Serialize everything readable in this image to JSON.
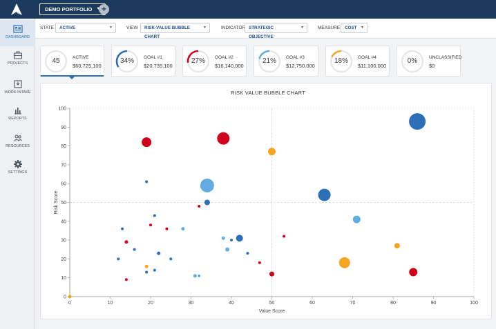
{
  "topbar": {
    "portfolio_label": "DEMO PORTFOLIO",
    "add_label": "+"
  },
  "sidebar": {
    "items": [
      {
        "label": "DASHBOARD",
        "icon": "dashboard-icon",
        "active": true
      },
      {
        "label": "PROJECTS",
        "icon": "briefcase-icon",
        "active": false
      },
      {
        "label": "WORK INTAKE",
        "icon": "inbox-icon",
        "active": false
      },
      {
        "label": "REPORTS",
        "icon": "bar-chart-icon",
        "active": false
      },
      {
        "label": "RESOURCES",
        "icon": "people-icon",
        "active": false
      },
      {
        "label": "SETTINGS",
        "icon": "gear-icon",
        "active": false
      }
    ]
  },
  "filters": {
    "state": {
      "label": "STATE",
      "value": "ACTIVE"
    },
    "view": {
      "label": "VIEW",
      "value": "RISK-VALUE BUBBLE CHART"
    },
    "indicator": {
      "label": "INDICATOR",
      "value": "STRATEGIC OBJECTIVE"
    },
    "measure": {
      "label": "MEASURE",
      "value": "COST"
    }
  },
  "cards": [
    {
      "value": "45",
      "name": "ACTIVE",
      "amount": "$60,725,100",
      "color": "#2c6fb6",
      "fraction": 0
    },
    {
      "value": "34%",
      "name": "GOAL #1",
      "amount": "$20,735,100",
      "color": "#2c6fb6",
      "fraction": 0.34
    },
    {
      "value": "27%",
      "name": "GOAL #2",
      "amount": "$16,140,000",
      "color": "#d0021b",
      "fraction": 0.27
    },
    {
      "value": "21%",
      "name": "GOAL #3",
      "amount": "$12,750,000",
      "color": "#62ace0",
      "fraction": 0.21
    },
    {
      "value": "18%",
      "name": "GOAL #4",
      "amount": "$11,100,000",
      "color": "#f5a623",
      "fraction": 0.18
    },
    {
      "value": "0%",
      "name": "UNCLASSIFIED",
      "amount": "$0",
      "color": "#9aa3ab",
      "fraction": 0
    }
  ],
  "chart_data": {
    "type": "scatter",
    "title": "RISK VALUE BUBBLE CHART",
    "xlabel": "Value Score",
    "ylabel": "Risk Score",
    "xlim": [
      0,
      100
    ],
    "ylim": [
      0,
      100
    ],
    "xticks": [
      0,
      10,
      20,
      30,
      40,
      50,
      60,
      70,
      80,
      90,
      100
    ],
    "yticks": [
      0,
      10,
      20,
      30,
      40,
      50,
      60,
      70,
      80,
      90,
      100
    ],
    "reference_lines": {
      "x": 50,
      "y": 50
    },
    "grid": true,
    "series_colors": {
      "goal1": "#2c6fb6",
      "goal2": "#d0021b",
      "goal3": "#62ace0",
      "goal4": "#f5a623"
    },
    "points": [
      {
        "x": 86,
        "y": 93,
        "r": 12,
        "group": "goal1"
      },
      {
        "x": 63,
        "y": 54,
        "r": 9,
        "group": "goal1"
      },
      {
        "x": 42,
        "y": 31,
        "r": 5,
        "group": "goal1"
      },
      {
        "x": 34,
        "y": 50,
        "r": 4,
        "group": "goal1"
      },
      {
        "x": 19,
        "y": 61,
        "r": 2,
        "group": "goal1"
      },
      {
        "x": 21,
        "y": 43,
        "r": 2,
        "group": "goal1"
      },
      {
        "x": 13,
        "y": 36,
        "r": 2,
        "group": "goal1"
      },
      {
        "x": 16,
        "y": 25,
        "r": 2,
        "group": "goal1"
      },
      {
        "x": 22,
        "y": 23,
        "r": 2.5,
        "group": "goal1"
      },
      {
        "x": 12,
        "y": 20,
        "r": 2,
        "group": "goal1"
      },
      {
        "x": 25,
        "y": 20,
        "r": 2,
        "group": "goal1"
      },
      {
        "x": 21,
        "y": 14,
        "r": 2,
        "group": "goal1"
      },
      {
        "x": 19,
        "y": 13,
        "r": 2,
        "group": "goal1"
      },
      {
        "x": 40,
        "y": 30,
        "r": 2,
        "group": "goal1"
      },
      {
        "x": 44,
        "y": 23,
        "r": 2,
        "group": "goal1"
      },
      {
        "x": 38,
        "y": 84,
        "r": 9,
        "group": "goal2"
      },
      {
        "x": 19,
        "y": 82,
        "r": 7,
        "group": "goal2"
      },
      {
        "x": 85,
        "y": 13,
        "r": 6,
        "group": "goal2"
      },
      {
        "x": 50,
        "y": 12,
        "r": 3.5,
        "group": "goal2"
      },
      {
        "x": 32,
        "y": 48,
        "r": 2,
        "group": "goal2"
      },
      {
        "x": 20,
        "y": 38,
        "r": 2,
        "group": "goal2"
      },
      {
        "x": 24,
        "y": 36,
        "r": 2,
        "group": "goal2"
      },
      {
        "x": 14,
        "y": 29,
        "r": 2.5,
        "group": "goal2"
      },
      {
        "x": 53,
        "y": 32,
        "r": 2,
        "group": "goal2"
      },
      {
        "x": 47,
        "y": 18,
        "r": 2,
        "group": "goal2"
      },
      {
        "x": 14,
        "y": 9,
        "r": 2,
        "group": "goal2"
      },
      {
        "x": 34,
        "y": 59,
        "r": 10,
        "group": "goal3"
      },
      {
        "x": 71,
        "y": 41,
        "r": 5.5,
        "group": "goal3"
      },
      {
        "x": 28,
        "y": 36,
        "r": 2.5,
        "group": "goal3"
      },
      {
        "x": 38,
        "y": 31,
        "r": 2.5,
        "group": "goal3"
      },
      {
        "x": 39,
        "y": 25,
        "r": 3,
        "group": "goal3"
      },
      {
        "x": 31,
        "y": 11,
        "r": 2.5,
        "group": "goal3"
      },
      {
        "x": 32,
        "y": 11,
        "r": 2,
        "group": "goal3"
      },
      {
        "x": 50,
        "y": 77,
        "r": 5.5,
        "group": "goal4"
      },
      {
        "x": 68,
        "y": 18,
        "r": 8,
        "group": "goal4"
      },
      {
        "x": 81,
        "y": 27,
        "r": 4,
        "group": "goal4"
      },
      {
        "x": 19,
        "y": 16,
        "r": 2.5,
        "group": "goal4"
      },
      {
        "x": 0,
        "y": 0,
        "r": 2.5,
        "group": "goal4"
      }
    ]
  }
}
